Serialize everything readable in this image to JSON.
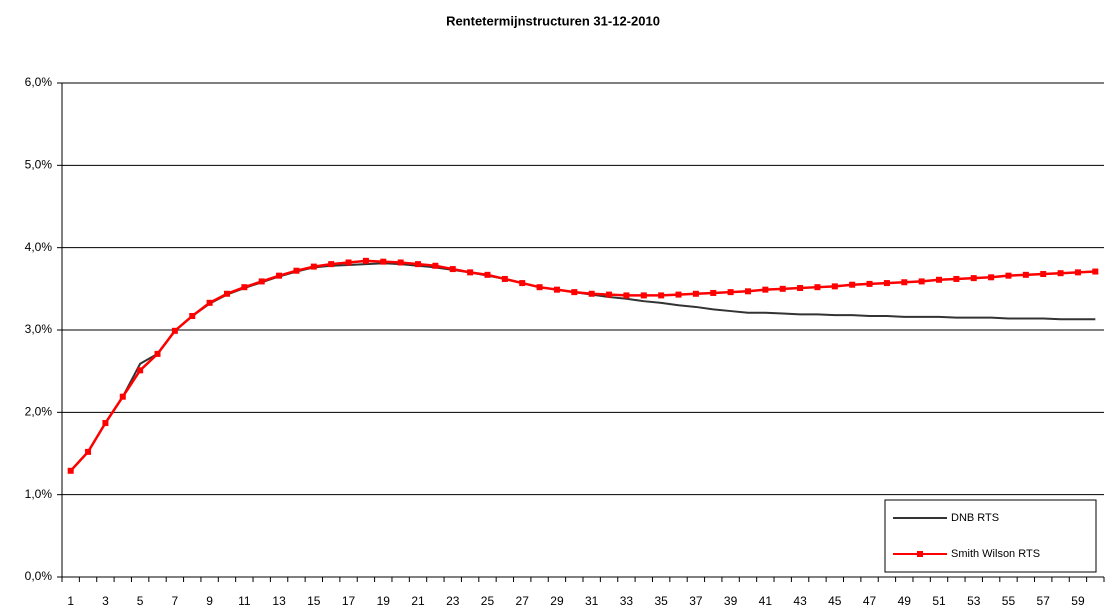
{
  "chart_data": {
    "type": "line",
    "title": "Rentetermijnstructuren  31-12-2010",
    "categories": [
      1,
      null,
      3,
      null,
      5,
      null,
      7,
      null,
      9,
      null,
      11,
      null,
      13,
      null,
      15,
      null,
      17,
      null,
      19,
      null,
      21,
      null,
      23,
      null,
      25,
      null,
      27,
      null,
      29,
      null,
      31,
      null,
      33,
      null,
      35,
      null,
      37,
      null,
      39,
      null,
      41,
      null,
      43,
      null,
      45,
      null,
      47,
      null,
      49,
      null,
      51,
      null,
      53,
      null,
      55,
      null,
      57,
      null,
      59,
      null
    ],
    "ylim": [
      0,
      6
    ],
    "yticks": [
      {
        "value": 0,
        "label": "0,0%"
      },
      {
        "value": 1,
        "label": "1,0%"
      },
      {
        "value": 2,
        "label": "2,0%"
      },
      {
        "value": 3,
        "label": "3,0%"
      },
      {
        "value": 4,
        "label": "4,0%"
      },
      {
        "value": 5,
        "label": "5,0%"
      },
      {
        "value": 6,
        "label": "6,0%"
      }
    ],
    "grid": true,
    "legend": "lower right",
    "series": [
      {
        "name": "DNB RTS",
        "color": "#333333",
        "marker": false,
        "values": [
          1.29,
          1.52,
          1.87,
          2.19,
          2.59,
          2.71,
          2.99,
          3.17,
          3.32,
          3.43,
          3.51,
          3.58,
          3.65,
          3.71,
          3.76,
          3.78,
          3.79,
          3.8,
          3.81,
          3.8,
          3.78,
          3.76,
          3.73,
          3.7,
          3.66,
          3.62,
          3.57,
          3.52,
          3.49,
          3.46,
          3.43,
          3.4,
          3.38,
          3.35,
          3.33,
          3.3,
          3.28,
          3.25,
          3.23,
          3.21,
          3.21,
          3.2,
          3.19,
          3.19,
          3.18,
          3.18,
          3.17,
          3.17,
          3.16,
          3.16,
          3.16,
          3.15,
          3.15,
          3.15,
          3.14,
          3.14,
          3.14,
          3.13,
          3.13,
          3.13
        ]
      },
      {
        "name": "Smith Wilson RTS",
        "color": "#ff0000",
        "marker": true,
        "values": [
          1.29,
          1.52,
          1.87,
          2.19,
          2.51,
          2.71,
          2.99,
          3.17,
          3.33,
          3.44,
          3.52,
          3.59,
          3.66,
          3.72,
          3.77,
          3.8,
          3.82,
          3.84,
          3.83,
          3.82,
          3.8,
          3.78,
          3.74,
          3.7,
          3.67,
          3.62,
          3.57,
          3.52,
          3.49,
          3.46,
          3.44,
          3.43,
          3.42,
          3.42,
          3.42,
          3.43,
          3.44,
          3.45,
          3.46,
          3.47,
          3.49,
          3.5,
          3.51,
          3.52,
          3.53,
          3.55,
          3.56,
          3.57,
          3.58,
          3.59,
          3.61,
          3.62,
          3.63,
          3.64,
          3.66,
          3.67,
          3.68,
          3.69,
          3.7,
          3.71
        ]
      }
    ]
  }
}
